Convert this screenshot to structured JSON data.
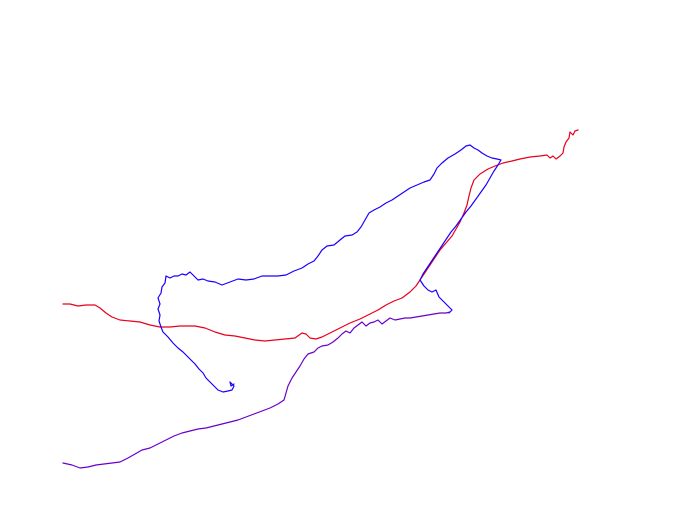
{
  "map": {
    "background_color": "#ffffff",
    "tracks": [
      {
        "name": "red-track",
        "color": "#e8001c"
      },
      {
        "name": "blue-track",
        "color": "#1a00ff"
      },
      {
        "name": "purple-track",
        "color": "#6a00c8"
      }
    ]
  }
}
